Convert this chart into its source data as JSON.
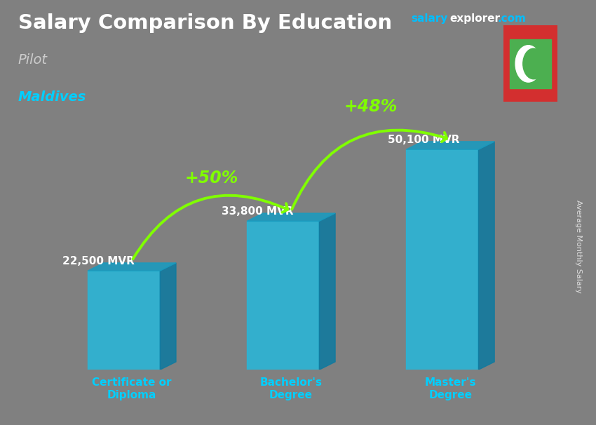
{
  "title": "Salary Comparison By Education",
  "subtitle_job": "Pilot",
  "subtitle_location": "Maldives",
  "ylabel": "Average Monthly Salary",
  "categories": [
    "Certificate or\nDiploma",
    "Bachelor's\nDegree",
    "Master's\nDegree"
  ],
  "values": [
    22500,
    33800,
    50100
  ],
  "value_labels": [
    "22,500 MVR",
    "33,800 MVR",
    "50,100 MVR"
  ],
  "pct_labels": [
    "+50%",
    "+48%"
  ],
  "bar_color_front": "#29B6D8",
  "bar_color_top": "#1A9BBF",
  "bar_color_side": "#0F7A9F",
  "background_color": "#808080",
  "title_color": "#ffffff",
  "subtitle_job_color": "#cccccc",
  "subtitle_loc_color": "#00CFFF",
  "value_color": "#ffffff",
  "pct_color": "#80FF00",
  "arrow_color": "#80FF00",
  "xtick_color": "#00CFFF",
  "site_salary_color": "#00BFFF",
  "site_explorer_color": "#ffffff",
  "site_com_color": "#00BFFF",
  "flag_bg": "#d32f2f",
  "flag_green": "#4CAF50",
  "ylim": [
    0,
    58000
  ],
  "xlim": [
    0,
    7
  ],
  "x_positions": [
    1.3,
    3.5,
    5.7
  ],
  "bar_width": 1.0,
  "depth_x": 0.22,
  "depth_y": 1800
}
